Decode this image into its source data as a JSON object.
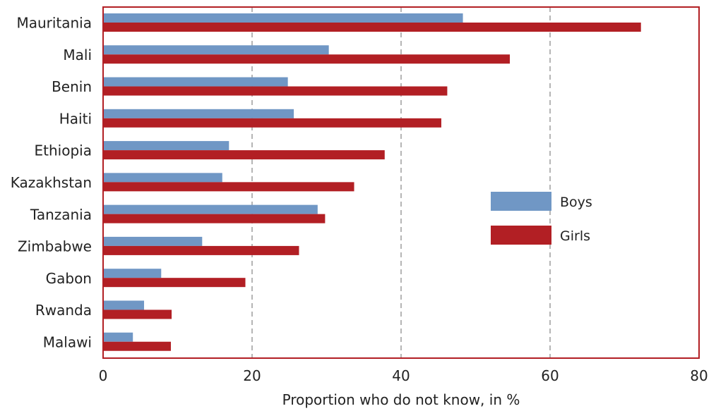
{
  "chart_data": {
    "type": "bar",
    "orientation": "horizontal",
    "categories": [
      "Mauritania",
      "Mali",
      "Benin",
      "Haiti",
      "Ethiopia",
      "Kazakhstan",
      "Tanzania",
      "Zimbabwe",
      "Gabon",
      "Rwanda",
      "Malawi"
    ],
    "series": [
      {
        "name": "Boys",
        "color": "#7097c5",
        "values": [
          48.3,
          30.3,
          24.8,
          25.6,
          16.9,
          16.0,
          28.8,
          13.3,
          7.8,
          5.5,
          4.0
        ]
      },
      {
        "name": "Girls",
        "color": "#b21f24",
        "values": [
          72.2,
          54.6,
          46.2,
          45.4,
          37.8,
          33.7,
          29.8,
          26.3,
          19.1,
          9.2,
          9.1
        ]
      }
    ],
    "xlabel": "Proportion who do not know, in %",
    "ylabel": "",
    "title": "",
    "xlim": [
      0,
      80
    ],
    "xticks": [
      "0",
      "20",
      "40",
      "60",
      "80"
    ],
    "grid": "vertical-dashed",
    "legend_position": "right",
    "frame_color": "#b21f24",
    "grid_color": "#b5b5b5"
  }
}
